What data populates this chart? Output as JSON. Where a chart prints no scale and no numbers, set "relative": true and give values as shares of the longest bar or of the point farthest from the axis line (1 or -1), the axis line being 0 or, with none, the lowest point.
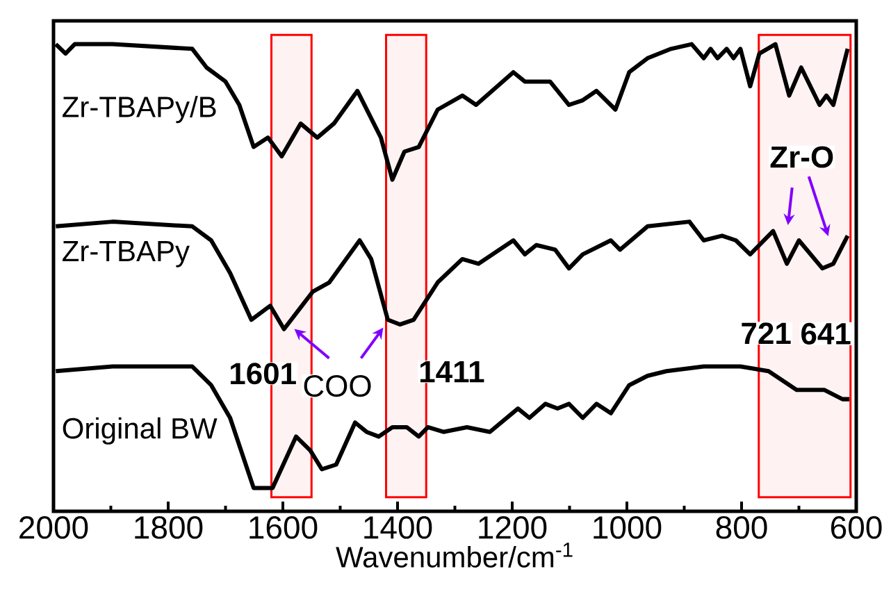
{
  "chart_data": {
    "type": "line",
    "relative": true,
    "xlabel": "Wavenumber/cm$^{-1}$",
    "xlim": [
      2000,
      600
    ],
    "xticks": [
      2000,
      1800,
      1600,
      1400,
      1200,
      1000,
      800,
      600
    ],
    "grid": false,
    "legend": false,
    "marker": "none",
    "line_style": "solid",
    "series": [
      {
        "name": "Zr-TBAPy/B",
        "color": "#000000",
        "x": [
          1996,
          1979,
          1963,
          1897,
          1758,
          1733,
          1700,
          1676,
          1651,
          1626,
          1602,
          1569,
          1540,
          1511,
          1470,
          1429,
          1409,
          1388,
          1363,
          1330,
          1287,
          1263,
          1198,
          1178,
          1134,
          1101,
          1077,
          1053,
          1020,
          996,
          964,
          923,
          887,
          866,
          854,
          842,
          826,
          814,
          802,
          785,
          769,
          741,
          717,
          696,
          664,
          652,
          640,
          615
        ],
        "values": [
          1.0,
          0.98,
          1.0,
          1.0,
          0.99,
          0.95,
          0.92,
          0.87,
          0.78,
          0.8,
          0.76,
          0.83,
          0.8,
          0.83,
          0.9,
          0.8,
          0.71,
          0.77,
          0.78,
          0.86,
          0.89,
          0.87,
          0.94,
          0.92,
          0.92,
          0.87,
          0.88,
          0.9,
          0.86,
          0.94,
          0.97,
          0.99,
          1.0,
          0.97,
          0.99,
          0.97,
          0.99,
          0.97,
          0.99,
          0.91,
          0.98,
          1.0,
          0.89,
          0.95,
          0.87,
          0.89,
          0.87,
          0.99
        ]
      },
      {
        "name": "Zr-TBAPy",
        "color": "#000000",
        "x": [
          1996,
          1897,
          1758,
          1725,
          1692,
          1655,
          1622,
          1598,
          1573,
          1548,
          1519,
          1466,
          1446,
          1417,
          1396,
          1372,
          1330,
          1287,
          1259,
          1198,
          1178,
          1158,
          1125,
          1101,
          1077,
          1028,
          1012,
          964,
          891,
          866,
          834,
          810,
          785,
          745,
          721,
          700,
          659,
          640,
          615
        ],
        "values": [
          0.61,
          0.62,
          0.61,
          0.58,
          0.51,
          0.41,
          0.44,
          0.39,
          0.43,
          0.47,
          0.49,
          0.58,
          0.54,
          0.41,
          0.4,
          0.41,
          0.49,
          0.54,
          0.53,
          0.58,
          0.55,
          0.57,
          0.56,
          0.52,
          0.55,
          0.58,
          0.56,
          0.61,
          0.62,
          0.58,
          0.59,
          0.58,
          0.55,
          0.6,
          0.53,
          0.58,
          0.52,
          0.53,
          0.59
        ]
      },
      {
        "name": "Original BW",
        "color": "#000000",
        "x": [
          1996,
          1897,
          1758,
          1725,
          1692,
          1651,
          1618,
          1577,
          1552,
          1532,
          1507,
          1474,
          1454,
          1433,
          1409,
          1384,
          1363,
          1347,
          1320,
          1279,
          1239,
          1190,
          1170,
          1142,
          1121,
          1101,
          1077,
          1053,
          1028,
          996,
          964,
          931,
          866,
          802,
          753,
          704,
          656,
          624,
          612
        ],
        "values": [
          0.3,
          0.31,
          0.31,
          0.27,
          0.2,
          0.05,
          0.05,
          0.16,
          0.13,
          0.09,
          0.1,
          0.19,
          0.17,
          0.16,
          0.18,
          0.18,
          0.16,
          0.18,
          0.17,
          0.18,
          0.17,
          0.22,
          0.2,
          0.23,
          0.22,
          0.23,
          0.2,
          0.23,
          0.21,
          0.27,
          0.29,
          0.3,
          0.31,
          0.31,
          0.3,
          0.26,
          0.26,
          0.24,
          0.24
        ]
      }
    ],
    "bands": [
      {
        "axis": "x",
        "from": 1620,
        "to": 1550,
        "color": "#ff0000"
      },
      {
        "axis": "x",
        "from": 1420,
        "to": 1350,
        "color": "#ff0000"
      },
      {
        "axis": "x",
        "from": 770,
        "to": 610,
        "color": "#ff0000"
      }
    ],
    "annotations": [
      {
        "text": "**1601**",
        "x": 1601,
        "y": 0.39
      },
      "COO",
      {
        "text": "**1411**",
        "x": 1411,
        "y": 0.4
      },
      {
        "text": "**Zr-O**",
        "x": 690,
        "y": 0.58
      },
      {
        "text": "**721**",
        "x": 721,
        "y": 0.53
      },
      {
        "text": "**641**",
        "x": 641,
        "y": 0.52
      }
    ]
  }
}
